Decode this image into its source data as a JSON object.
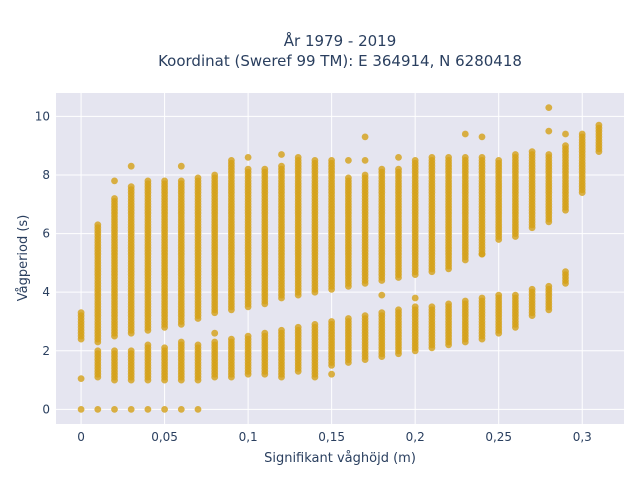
{
  "chart_data": {
    "type": "scatter",
    "title": [
      "År 1979 - 2019",
      "Koordinat (Sweref 99 TM): E 364914, N 6280418"
    ],
    "xlabel": "Signifikant våghöjd (m)",
    "ylabel": "Vågperiod (s)",
    "xlim": [
      -0.015,
      0.325
    ],
    "ylim": [
      -0.5,
      10.8
    ],
    "x_ticks": [
      0,
      0.05,
      0.1,
      0.15,
      0.2,
      0.25,
      0.3
    ],
    "x_tick_labels": [
      "0",
      "0,05",
      "0,1",
      "0,15",
      "0,2",
      "0,25",
      "0,3"
    ],
    "y_ticks": [
      0,
      2,
      4,
      6,
      8,
      10
    ],
    "y_tick_labels": [
      "0",
      "2",
      "4",
      "6",
      "8",
      "10"
    ],
    "grid": true,
    "marker_color": "#d4a017",
    "plot_bg": "#e5e5f0",
    "columns": [
      {
        "x": 0.0,
        "ranges": [
          [
            2.4,
            3.3
          ]
        ],
        "extra": [
          0,
          1.05
        ]
      },
      {
        "x": 0.01,
        "ranges": [
          [
            1.1,
            2.0
          ],
          [
            2.3,
            6.3
          ]
        ],
        "extra": [
          0
        ]
      },
      {
        "x": 0.02,
        "ranges": [
          [
            1.0,
            2.0
          ],
          [
            2.5,
            7.2
          ]
        ],
        "extra": [
          0,
          7.8
        ]
      },
      {
        "x": 0.03,
        "ranges": [
          [
            1.0,
            2.0
          ],
          [
            2.6,
            7.6
          ]
        ],
        "extra": [
          0,
          8.3
        ]
      },
      {
        "x": 0.04,
        "ranges": [
          [
            1.0,
            2.2
          ],
          [
            2.7,
            7.8
          ]
        ],
        "extra": [
          0
        ]
      },
      {
        "x": 0.05,
        "ranges": [
          [
            1.0,
            2.1
          ],
          [
            2.8,
            7.8
          ]
        ],
        "extra": [
          0
        ]
      },
      {
        "x": 0.06,
        "ranges": [
          [
            1.0,
            2.3
          ],
          [
            2.9,
            7.8
          ]
        ],
        "extra": [
          0,
          8.3
        ]
      },
      {
        "x": 0.07,
        "ranges": [
          [
            1.0,
            2.2
          ],
          [
            3.1,
            7.9
          ]
        ],
        "extra": [
          0
        ]
      },
      {
        "x": 0.08,
        "ranges": [
          [
            1.1,
            2.3
          ],
          [
            3.3,
            8.0
          ]
        ],
        "extra": [
          2.6
        ]
      },
      {
        "x": 0.09,
        "ranges": [
          [
            1.1,
            2.4
          ],
          [
            3.4,
            8.5
          ]
        ],
        "extra": []
      },
      {
        "x": 0.1,
        "ranges": [
          [
            1.2,
            2.5
          ],
          [
            3.5,
            8.2
          ]
        ],
        "extra": [
          8.6
        ]
      },
      {
        "x": 0.11,
        "ranges": [
          [
            1.2,
            2.6
          ],
          [
            3.6,
            8.2
          ]
        ],
        "extra": []
      },
      {
        "x": 0.12,
        "ranges": [
          [
            1.2,
            2.7
          ],
          [
            3.8,
            8.3
          ]
        ],
        "extra": [
          8.7,
          1.1
        ]
      },
      {
        "x": 0.13,
        "ranges": [
          [
            1.3,
            2.8
          ],
          [
            3.9,
            8.6
          ]
        ],
        "extra": []
      },
      {
        "x": 0.14,
        "ranges": [
          [
            1.2,
            2.9
          ],
          [
            4.0,
            8.5
          ]
        ],
        "extra": [
          1.1
        ]
      },
      {
        "x": 0.15,
        "ranges": [
          [
            1.5,
            3.0
          ],
          [
            4.1,
            8.5
          ]
        ],
        "extra": [
          1.2
        ]
      },
      {
        "x": 0.16,
        "ranges": [
          [
            1.6,
            3.1
          ],
          [
            4.2,
            7.9
          ]
        ],
        "extra": [
          8.5
        ]
      },
      {
        "x": 0.17,
        "ranges": [
          [
            1.7,
            3.2
          ],
          [
            4.3,
            8.0
          ]
        ],
        "extra": [
          9.3,
          8.5
        ]
      },
      {
        "x": 0.18,
        "ranges": [
          [
            1.8,
            3.3
          ],
          [
            4.4,
            8.2
          ]
        ],
        "extra": [
          3.9
        ]
      },
      {
        "x": 0.19,
        "ranges": [
          [
            1.9,
            3.4
          ],
          [
            4.5,
            8.2
          ]
        ],
        "extra": [
          8.6
        ]
      },
      {
        "x": 0.2,
        "ranges": [
          [
            2.0,
            3.5
          ],
          [
            4.6,
            8.5
          ]
        ],
        "extra": [
          3.8
        ]
      },
      {
        "x": 0.21,
        "ranges": [
          [
            2.1,
            3.5
          ],
          [
            4.7,
            8.6
          ]
        ],
        "extra": []
      },
      {
        "x": 0.22,
        "ranges": [
          [
            2.2,
            3.6
          ],
          [
            4.8,
            8.6
          ]
        ],
        "extra": []
      },
      {
        "x": 0.23,
        "ranges": [
          [
            2.3,
            3.7
          ],
          [
            5.1,
            8.6
          ]
        ],
        "extra": [
          9.4
        ]
      },
      {
        "x": 0.24,
        "ranges": [
          [
            2.4,
            3.8
          ],
          [
            5.3,
            8.6
          ]
        ],
        "extra": [
          9.3,
          5.3
        ]
      },
      {
        "x": 0.25,
        "ranges": [
          [
            2.6,
            3.9
          ],
          [
            5.8,
            8.5
          ]
        ],
        "extra": []
      },
      {
        "x": 0.26,
        "ranges": [
          [
            2.8,
            3.9
          ],
          [
            5.9,
            8.7
          ]
        ],
        "extra": []
      },
      {
        "x": 0.27,
        "ranges": [
          [
            3.2,
            4.1
          ],
          [
            6.2,
            8.8
          ]
        ],
        "extra": []
      },
      {
        "x": 0.28,
        "ranges": [
          [
            3.4,
            4.2
          ],
          [
            6.4,
            8.7
          ]
        ],
        "extra": [
          9.5,
          10.3
        ]
      },
      {
        "x": 0.29,
        "ranges": [
          [
            4.3,
            4.7
          ],
          [
            6.8,
            9.0
          ]
        ],
        "extra": [
          9.4
        ]
      },
      {
        "x": 0.3,
        "ranges": [
          [
            7.4,
            9.4
          ]
        ],
        "extra": []
      },
      {
        "x": 0.31,
        "ranges": [
          [
            8.8,
            9.7
          ]
        ],
        "extra": []
      }
    ]
  }
}
